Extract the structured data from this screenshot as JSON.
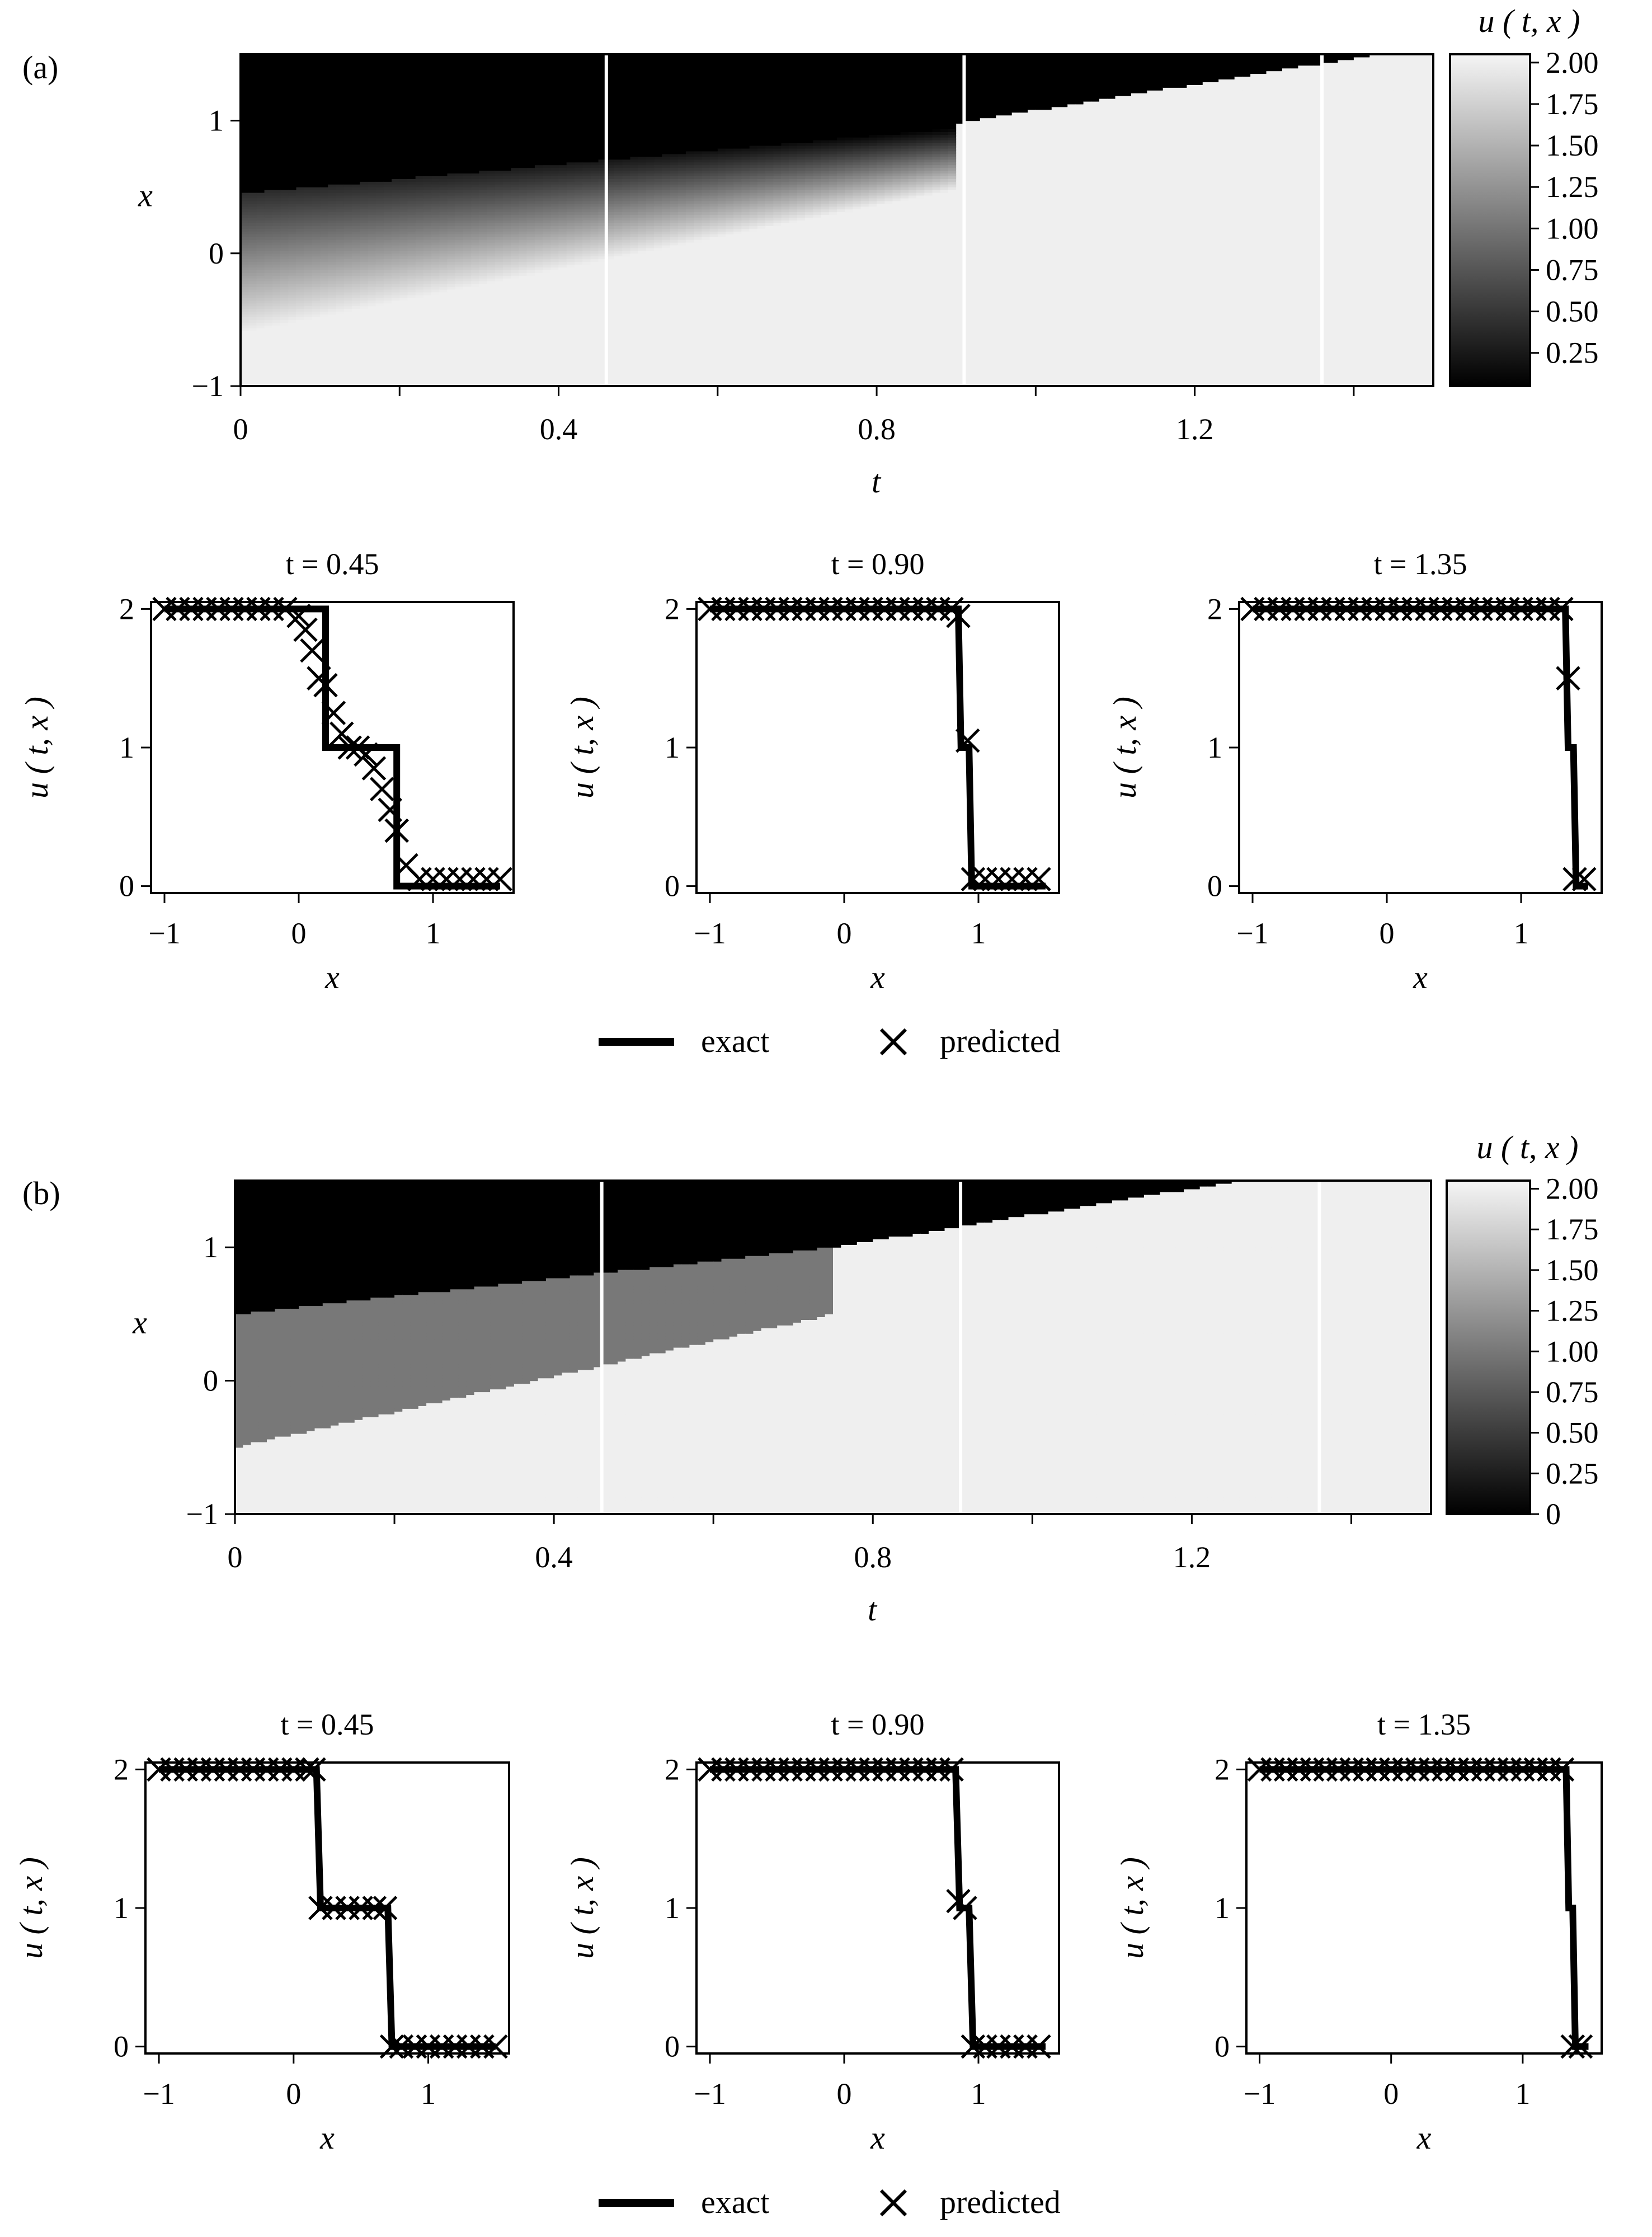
{
  "figure": {
    "panels": [
      "(a)",
      "(b)"
    ],
    "legend": {
      "exact": "exact",
      "predicted": "predicted"
    }
  },
  "chart_data": [
    {
      "panel": "(a)",
      "type": "heatmap",
      "xlabel": "t",
      "ylabel": "x",
      "xlim": [
        0,
        1.5
      ],
      "ylim": [
        -1,
        1.5
      ],
      "xticks": [
        "0",
        "0.4",
        "0.8",
        "1.2"
      ],
      "yticks": [
        "-1",
        "0",
        "1"
      ],
      "colorbar": {
        "label": "u ( t, x )",
        "range": [
          0.05,
          2.05
        ],
        "ticks": [
          "0.25",
          "0.50",
          "0.75",
          "1.00",
          "1.25",
          "1.50",
          "1.75",
          "2.00"
        ],
        "colormap": "gray"
      },
      "slice_lines_t": [
        0.46,
        0.91,
        1.36
      ],
      "description_values": {
        "left_state": 2,
        "right_state": 0
      }
    },
    {
      "panel": "(a)",
      "type": "line",
      "title": "t = 0.45",
      "xlabel": "x",
      "ylabel": "u ( t, x )",
      "xlim": [
        -1.1,
        1.6
      ],
      "ylim": [
        -0.05,
        2.05
      ],
      "xticks": [
        "-1",
        "0",
        "1"
      ],
      "yticks": [
        "0",
        "1",
        "2"
      ],
      "series": [
        {
          "name": "exact",
          "x": [
            -1.0,
            0.2,
            0.2,
            0.73,
            0.73,
            1.5
          ],
          "y": [
            2,
            2,
            1,
            1,
            0,
            0
          ]
        },
        {
          "name": "predicted",
          "x": [
            -1.0,
            -0.9,
            -0.8,
            -0.7,
            -0.6,
            -0.5,
            -0.4,
            -0.3,
            -0.2,
            -0.1,
            0.0,
            0.05,
            0.1,
            0.15,
            0.2,
            0.26,
            0.32,
            0.38,
            0.44,
            0.5,
            0.56,
            0.62,
            0.68,
            0.73,
            0.8,
            0.9,
            1.0,
            1.1,
            1.2,
            1.3,
            1.4,
            1.5
          ],
          "y": [
            2,
            2,
            2,
            2,
            2,
            2,
            2,
            2,
            2,
            2,
            1.95,
            1.85,
            1.7,
            1.5,
            1.45,
            1.25,
            1.1,
            1.0,
            1.0,
            0.95,
            0.85,
            0.7,
            0.55,
            0.4,
            0.15,
            0.05,
            0.05,
            0.05,
            0.05,
            0.05,
            0.05,
            0.05
          ]
        }
      ]
    },
    {
      "panel": "(a)",
      "type": "line",
      "title": "t = 0.90",
      "xlabel": "x",
      "ylabel": "u ( t, x )",
      "xlim": [
        -1.1,
        1.6
      ],
      "ylim": [
        -0.05,
        2.05
      ],
      "xticks": [
        "-1",
        "0",
        "1"
      ],
      "yticks": [
        "0",
        "1",
        "2"
      ],
      "series": [
        {
          "name": "exact",
          "x": [
            -1.0,
            0.85,
            0.87,
            0.93,
            0.95,
            1.5
          ],
          "y": [
            2,
            2,
            1,
            1,
            0,
            0
          ]
        },
        {
          "name": "predicted",
          "x": [
            -1.0,
            -0.9,
            -0.8,
            -0.7,
            -0.6,
            -0.5,
            -0.4,
            -0.3,
            -0.2,
            -0.1,
            0.0,
            0.1,
            0.2,
            0.3,
            0.4,
            0.5,
            0.6,
            0.7,
            0.8,
            0.85,
            0.92,
            0.96,
            1.05,
            1.15,
            1.25,
            1.35,
            1.45
          ],
          "y": [
            2,
            2,
            2,
            2,
            2,
            2,
            2,
            2,
            2,
            2,
            2,
            2,
            2,
            2,
            2,
            2,
            2,
            2,
            2,
            1.95,
            1.05,
            0.05,
            0.05,
            0.05,
            0.05,
            0.05,
            0.05
          ]
        }
      ]
    },
    {
      "panel": "(a)",
      "type": "line",
      "title": "t = 1.35",
      "xlabel": "x",
      "ylabel": "u ( t, x )",
      "xlim": [
        -1.1,
        1.6
      ],
      "ylim": [
        -0.05,
        2.05
      ],
      "xticks": [
        "-1",
        "0",
        "1"
      ],
      "yticks": [
        "0",
        "1",
        "2"
      ],
      "series": [
        {
          "name": "exact",
          "x": [
            -1.0,
            1.33,
            1.35,
            1.39,
            1.41,
            1.5
          ],
          "y": [
            2,
            2,
            1,
            1,
            0,
            0
          ]
        },
        {
          "name": "predicted",
          "x": [
            -1.0,
            -0.9,
            -0.8,
            -0.7,
            -0.6,
            -0.5,
            -0.4,
            -0.3,
            -0.2,
            -0.1,
            0.0,
            0.1,
            0.2,
            0.3,
            0.4,
            0.5,
            0.6,
            0.7,
            0.8,
            0.9,
            1.0,
            1.1,
            1.2,
            1.3,
            1.35,
            1.4,
            1.47
          ],
          "y": [
            2,
            2,
            2,
            2,
            2,
            2,
            2,
            2,
            2,
            2,
            2,
            2,
            2,
            2,
            2,
            2,
            2,
            2,
            2,
            2,
            2,
            2,
            2,
            2,
            1.5,
            0.05,
            0.05
          ]
        }
      ]
    },
    {
      "panel": "(b)",
      "type": "heatmap",
      "xlabel": "t",
      "ylabel": "x",
      "xlim": [
        0,
        1.5
      ],
      "ylim": [
        -1,
        1.5
      ],
      "xticks": [
        "0",
        "0.4",
        "0.8",
        "1.2"
      ],
      "yticks": [
        "-1",
        "0",
        "1"
      ],
      "colorbar": {
        "label": "u ( t, x )",
        "range": [
          0,
          2.05
        ],
        "ticks": [
          "0",
          "0.25",
          "0.50",
          "0.75",
          "1.00",
          "1.25",
          "1.50",
          "1.75",
          "2.00"
        ],
        "colormap": "gray"
      },
      "slice_lines_t": [
        0.46,
        0.91,
        1.36
      ],
      "description_values": {
        "left_state": 2,
        "middle_state": 1,
        "right_state": 0
      }
    },
    {
      "panel": "(b)",
      "type": "line",
      "title": "t = 0.45",
      "xlabel": "x",
      "ylabel": "u ( t, x )",
      "xlim": [
        -1.1,
        1.6
      ],
      "ylim": [
        -0.05,
        2.05
      ],
      "xticks": [
        "-1",
        "0",
        "1"
      ],
      "yticks": [
        "0",
        "1",
        "2"
      ],
      "series": [
        {
          "name": "exact",
          "x": [
            -1.0,
            0.17,
            0.2,
            0.7,
            0.73,
            1.5
          ],
          "y": [
            2,
            2,
            1,
            1,
            0,
            0
          ]
        },
        {
          "name": "predicted",
          "x": [
            -1.0,
            -0.9,
            -0.8,
            -0.7,
            -0.6,
            -0.5,
            -0.4,
            -0.3,
            -0.2,
            -0.1,
            0.0,
            0.1,
            0.15,
            0.2,
            0.3,
            0.4,
            0.5,
            0.6,
            0.68,
            0.73,
            0.8,
            0.9,
            1.0,
            1.1,
            1.2,
            1.3,
            1.4,
            1.5
          ],
          "y": [
            2,
            2,
            2,
            2,
            2,
            2,
            2,
            2,
            2,
            2,
            2,
            2,
            2,
            1.0,
            1.0,
            1.0,
            1.0,
            1.0,
            1.0,
            0.0,
            0.0,
            0.0,
            0.0,
            0.0,
            0.0,
            0.0,
            0.0,
            0.0
          ]
        }
      ]
    },
    {
      "panel": "(b)",
      "type": "line",
      "title": "t = 0.90",
      "xlabel": "x",
      "ylabel": "u ( t, x )",
      "xlim": [
        -1.1,
        1.6
      ],
      "ylim": [
        -0.05,
        2.05
      ],
      "xticks": [
        "-1",
        "0",
        "1"
      ],
      "yticks": [
        "0",
        "1",
        "2"
      ],
      "series": [
        {
          "name": "exact",
          "x": [
            -1.0,
            0.83,
            0.86,
            0.93,
            0.96,
            1.5
          ],
          "y": [
            2,
            2,
            1,
            1,
            0,
            0
          ]
        },
        {
          "name": "predicted",
          "x": [
            -1.0,
            -0.9,
            -0.8,
            -0.7,
            -0.6,
            -0.5,
            -0.4,
            -0.3,
            -0.2,
            -0.1,
            0.0,
            0.1,
            0.2,
            0.3,
            0.4,
            0.5,
            0.6,
            0.7,
            0.8,
            0.85,
            0.9,
            0.96,
            1.05,
            1.15,
            1.25,
            1.35,
            1.45
          ],
          "y": [
            2,
            2,
            2,
            2,
            2,
            2,
            2,
            2,
            2,
            2,
            2,
            2,
            2,
            2,
            2,
            2,
            2,
            2,
            2,
            1.05,
            1.0,
            0.0,
            0.0,
            0.0,
            0.0,
            0.0,
            0.0
          ]
        }
      ]
    },
    {
      "panel": "(b)",
      "type": "line",
      "title": "t = 1.35",
      "xlabel": "x",
      "ylabel": "u ( t, x )",
      "xlim": [
        -1.1,
        1.6
      ],
      "ylim": [
        -0.05,
        2.05
      ],
      "xticks": [
        "-1",
        "0",
        "1"
      ],
      "yticks": [
        "0",
        "1",
        "2"
      ],
      "series": [
        {
          "name": "exact",
          "x": [
            -1.0,
            1.33,
            1.35,
            1.38,
            1.4,
            1.5
          ],
          "y": [
            2,
            2,
            1,
            1,
            0,
            0
          ]
        },
        {
          "name": "predicted",
          "x": [
            -1.0,
            -0.9,
            -0.8,
            -0.7,
            -0.6,
            -0.5,
            -0.4,
            -0.3,
            -0.2,
            -0.1,
            0.0,
            0.1,
            0.2,
            0.3,
            0.4,
            0.5,
            0.6,
            0.7,
            0.8,
            0.9,
            1.0,
            1.1,
            1.2,
            1.3,
            1.38,
            1.44
          ],
          "y": [
            2,
            2,
            2,
            2,
            2,
            2,
            2,
            2,
            2,
            2,
            2,
            2,
            2,
            2,
            2,
            2,
            2,
            2,
            2,
            2,
            2,
            2,
            2,
            2,
            0.0,
            0.0
          ]
        }
      ]
    }
  ]
}
